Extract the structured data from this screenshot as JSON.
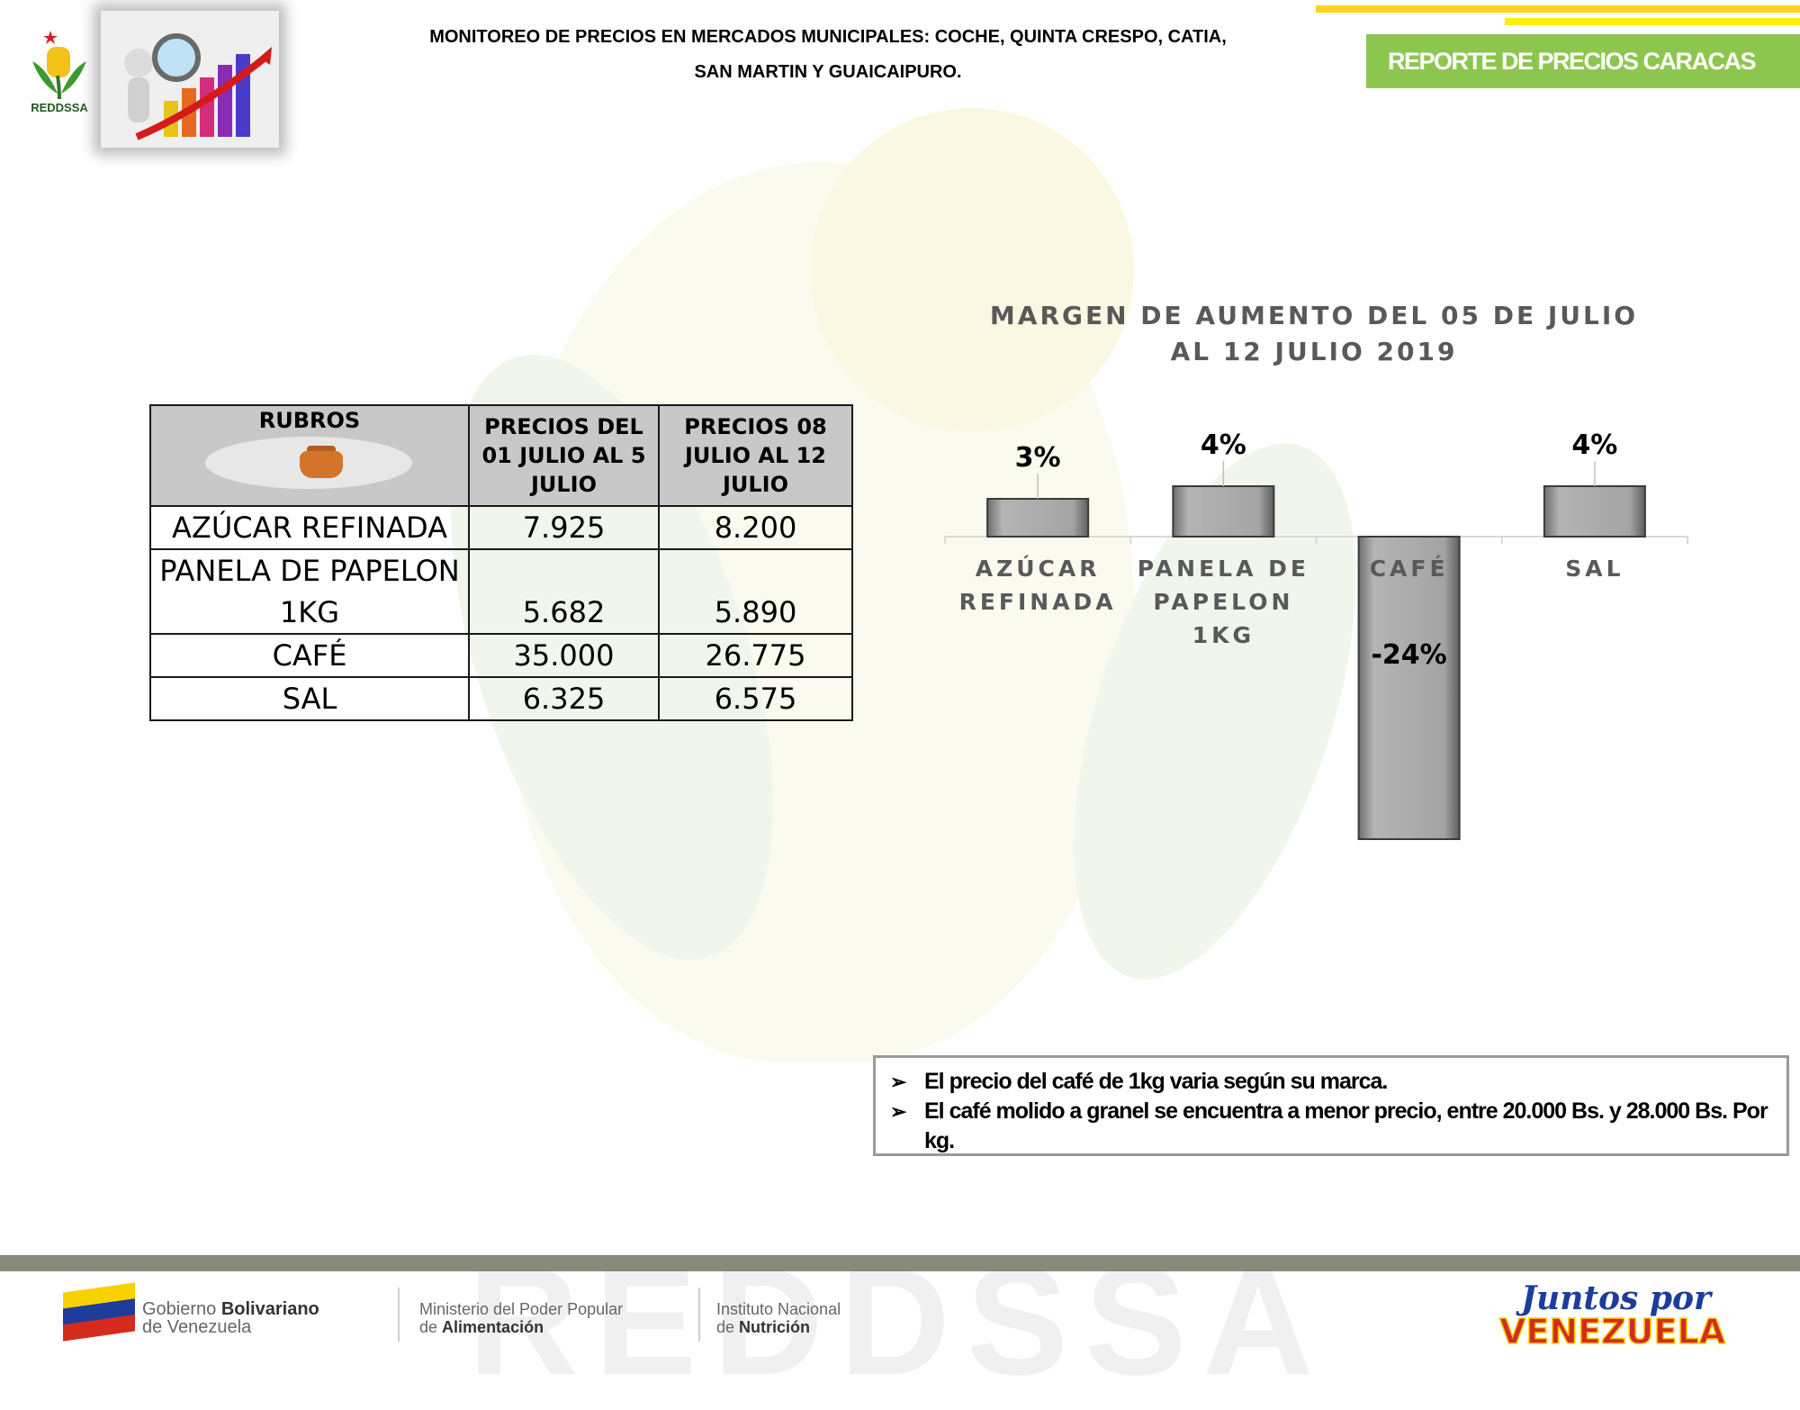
{
  "header": {
    "title_line1": "MONITOREO DE PRECIOS EN MERCADOS MUNICIPALES: COCHE, QUINTA CRESPO, CATIA,",
    "title_line2": "SAN MARTIN Y GUAICAIPURO.",
    "report_badge": "REPORTE DE PRECIOS CARACAS",
    "logo_text": "REDDSSA"
  },
  "table": {
    "headers": [
      "RUBROS",
      "PRECIOS DEL 01 JULIO AL 5 JULIO",
      "PRECIOS 08 JULIO AL 12 JULIO"
    ],
    "rows": [
      {
        "item": "AZÚCAR REFINADA",
        "p1": "7.925",
        "p2": "8.200"
      },
      {
        "item": "PANELA DE PAPELON 1KG",
        "p1": "5.682",
        "p2": "5.890"
      },
      {
        "item": "CAFÉ",
        "p1": "35.000",
        "p2": "26.775"
      },
      {
        "item": "SAL",
        "p1": "6.325",
        "p2": "6.575"
      }
    ]
  },
  "chart_data": {
    "type": "bar",
    "title": "MARGEN DE AUMENTO DEL 05 DE JULIO AL 12 JULIO 2019",
    "categories": [
      "AZÚCAR REFINADA",
      "PANELA DE PAPELON 1KG",
      "CAFÉ",
      "SAL"
    ],
    "values": [
      3,
      4,
      -24,
      4
    ],
    "data_labels": [
      "3%",
      "4%",
      "-24%",
      "4%"
    ],
    "ylim": [
      -24,
      4
    ],
    "grid": false,
    "legend": "none",
    "bar_color": "#a0a0a0"
  },
  "notes": [
    "El precio del café de 1kg varia según su marca.",
    "El café molido a granel se encuentra a menor precio, entre 20.000 Bs. y 28.000 Bs. Por kg."
  ],
  "footer": {
    "org1_a": "Gobierno",
    "org1_b": "Bolivariano",
    "org1_c": "de Venezuela",
    "org2_a": "Ministerio del Poder Popular",
    "org2_b": "de",
    "org2_c": "Alimentación",
    "org3_a": "Instituto Nacional",
    "org3_b": "de",
    "org3_c": "Nutrición",
    "slogan_1": "Juntos por",
    "slogan_2": "VENEZUELA",
    "watermark": "REDDSSA"
  }
}
